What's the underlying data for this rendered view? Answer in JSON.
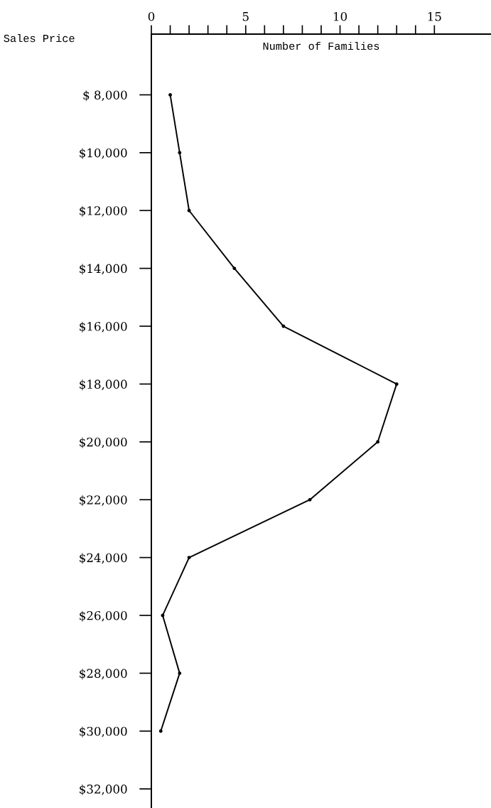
{
  "chart_data": {
    "type": "line",
    "orientation": "horizontal",
    "xlabel": "Number of Families",
    "ylabel": "Sales Price",
    "categories": [
      "$ 8,000",
      "$10,000",
      "$12,000",
      "$14,000",
      "$16,000",
      "$18,000",
      "$20,000",
      "$22,000",
      "$24,000",
      "$26,000",
      "$28,000",
      "$30,000",
      "$32,000"
    ],
    "series": [
      {
        "color": "#000000",
        "values": [
          1,
          1.5,
          2,
          4.4,
          7,
          13,
          12,
          8.4,
          2,
          0.6,
          1.5,
          0.5,
          null
        ]
      }
    ],
    "xlim": [
      0,
      18
    ],
    "xticks": [
      0,
      {
        "value": 1,
        "label": null
      },
      {
        "value": 2,
        "label": null
      },
      {
        "value": 3,
        "label": null
      },
      {
        "value": 4,
        "label": null
      },
      5,
      {
        "value": 6,
        "label": null
      },
      {
        "value": 7,
        "label": null
      },
      {
        "value": 8,
        "label": null
      },
      {
        "value": 9,
        "label": null
      },
      10,
      {
        "value": 11,
        "label": null
      },
      {
        "value": 12,
        "label": null
      },
      {
        "value": 13,
        "label": null
      },
      {
        "value": 14,
        "label": null
      },
      15
    ],
    "marker": "circle",
    "grid": false,
    "legend": false
  }
}
